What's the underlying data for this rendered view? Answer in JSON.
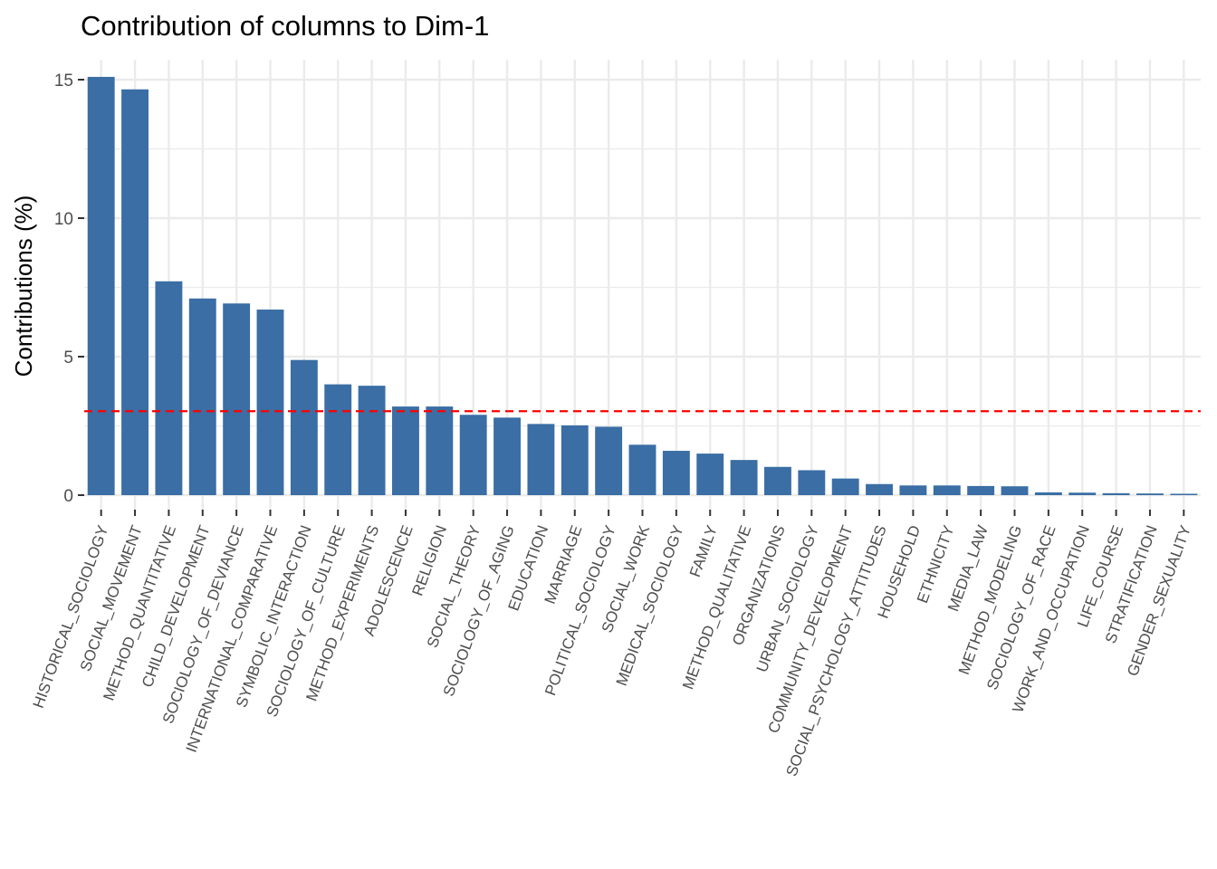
{
  "chart_data": {
    "type": "bar",
    "title": "Contribution of columns to Dim-1",
    "xlabel": "",
    "ylabel": "Contributions (%)",
    "ylim": [
      0,
      15.5
    ],
    "yticks": [
      0,
      5,
      10,
      15
    ],
    "reference_line": {
      "value": 3.03,
      "style": "dashed",
      "color": "#ff0000"
    },
    "bar_color": "#3a6ea5",
    "grid": true,
    "categories": [
      "HISTORICAL_SOCIOLOGY",
      "SOCIAL_MOVEMENT",
      "METHOD_QUANTITATIVE",
      "CHILD_DEVELOPMENT",
      "SOCIOLOGY_OF_DEVIANCE",
      "INTERNATIONAL_COMPARATIVE",
      "SYMBOLIC_INTERACTION",
      "SOCIOLOGY_OF_CULTURE",
      "METHOD_EXPERIMENTS",
      "ADOLESCENCE",
      "RELIGION",
      "SOCIAL_THEORY",
      "SOCIOLOGY_OF_AGING",
      "EDUCATION",
      "MARRIAGE",
      "POLITICAL_SOCIOLOGY",
      "SOCIAL_WORK",
      "MEDICAL_SOCIOLOGY",
      "FAMILY",
      "METHOD_QUALITATIVE",
      "ORGANIZATIONS",
      "URBAN_SOCIOLOGY",
      "COMMUNITY_DEVELOPMENT",
      "SOCIAL_PSYCHOLOGY_ATTITUDES",
      "HOUSEHOLD",
      "ETHNICITY",
      "MEDIA_LAW",
      "METHOD_MODELING",
      "SOCIOLOGY_OF_RACE",
      "WORK_AND_OCCUPATION",
      "LIFE_COURSE",
      "STRATIFICATION",
      "GENDER_SEXUALITY"
    ],
    "values": [
      15.1,
      14.65,
      7.72,
      7.1,
      6.92,
      6.7,
      4.88,
      4.0,
      3.95,
      3.2,
      3.2,
      2.9,
      2.8,
      2.57,
      2.52,
      2.47,
      1.82,
      1.6,
      1.5,
      1.27,
      1.02,
      0.9,
      0.6,
      0.4,
      0.35,
      0.35,
      0.33,
      0.32,
      0.1,
      0.09,
      0.07,
      0.06,
      0.05
    ]
  }
}
